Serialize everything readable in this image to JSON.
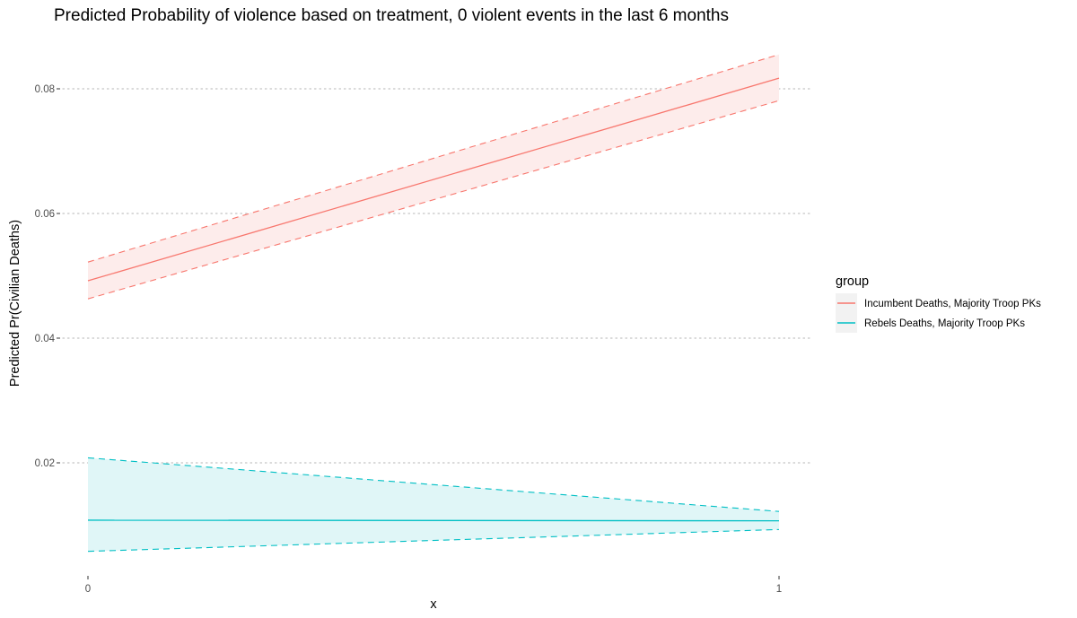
{
  "chart_data": {
    "type": "line",
    "title": "Predicted Probability of violence based on treatment, 0 violent events in the last 6 months",
    "xlabel": "x",
    "ylabel": "Predicted Pr(Civilian Deaths)",
    "x_ticks": [
      0,
      1
    ],
    "y_ticks": [
      0.02,
      0.04,
      0.06,
      0.08
    ],
    "y_tick_labels": [
      "0.02",
      "0.04",
      "0.06",
      "0.08"
    ],
    "xlim": [
      0,
      1
    ],
    "ylim": [
      0.0025,
      0.0875
    ],
    "grid": "horizontal dotted at major y ticks",
    "legend": {
      "title": "group",
      "position": "right"
    },
    "series": [
      {
        "name": "Incumbent Deaths, Majority Troop PKs",
        "color": "#F8766D",
        "x": [
          0,
          1
        ],
        "y": [
          0.0492,
          0.0817
        ],
        "ci_lower": [
          0.0463,
          0.0781
        ],
        "ci_upper": [
          0.0522,
          0.0855
        ]
      },
      {
        "name": "Rebels Deaths, Majority Troop PKs",
        "color": "#00BFC4",
        "x": [
          0,
          1
        ],
        "y": [
          0.0108,
          0.0107
        ],
        "ci_lower": [
          0.0058,
          0.0093
        ],
        "ci_upper": [
          0.0208,
          0.0122
        ]
      }
    ]
  }
}
